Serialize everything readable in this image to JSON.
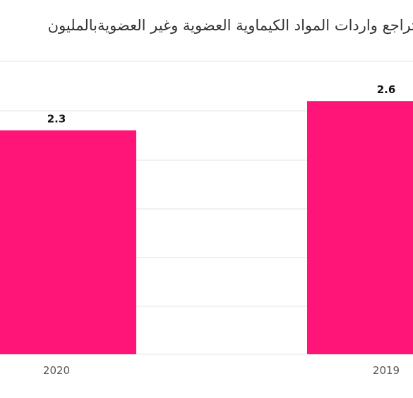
{
  "chart_data": {
    "type": "bar",
    "title": "تراجع واردات المواد الكيماوية العضوية وغير العضويةبالمليون",
    "categories": [
      "2020",
      "2019"
    ],
    "series": [
      {
        "values": [
          2.3,
          2.6
        ]
      }
    ],
    "data_labels": [
      "2.3",
      "2.6"
    ],
    "ylim": [
      0,
      3
    ],
    "grid": true,
    "legend": false,
    "bar_color": "#ff1577",
    "label_color": "#111111",
    "tick_label_color": "#555555",
    "grid_color": "#e3e3e3"
  }
}
